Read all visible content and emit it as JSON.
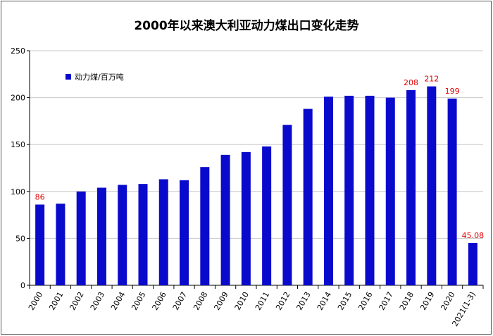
{
  "chart_data": {
    "type": "bar",
    "title": "2000年以来澳大利亚动力煤出口变化走势",
    "categories": [
      "2000",
      "2001",
      "2002",
      "2003",
      "2004",
      "2005",
      "2006",
      "2007",
      "2008",
      "2009",
      "2010",
      "2011",
      "2012",
      "2013",
      "2014",
      "2015",
      "2016",
      "2017",
      "2018",
      "2019",
      "2020",
      "2021(1-3)"
    ],
    "series": [
      {
        "name": "动力煤/百万吨",
        "color": "#0a0acd",
        "values": [
          86,
          87,
          100,
          104,
          107,
          108,
          113,
          112,
          126,
          139,
          142,
          148,
          171,
          188,
          201,
          202,
          202,
          200,
          208,
          212,
          199,
          45.08
        ],
        "value_labels": [
          "86",
          null,
          null,
          null,
          null,
          null,
          null,
          null,
          null,
          null,
          null,
          null,
          null,
          null,
          null,
          null,
          null,
          null,
          "208",
          "212",
          "199",
          "45.08"
        ]
      }
    ],
    "ylim": [
      0,
      250
    ],
    "yticks": [
      0,
      50,
      100,
      150,
      200,
      250
    ],
    "grid": true,
    "legend": "upper left"
  }
}
